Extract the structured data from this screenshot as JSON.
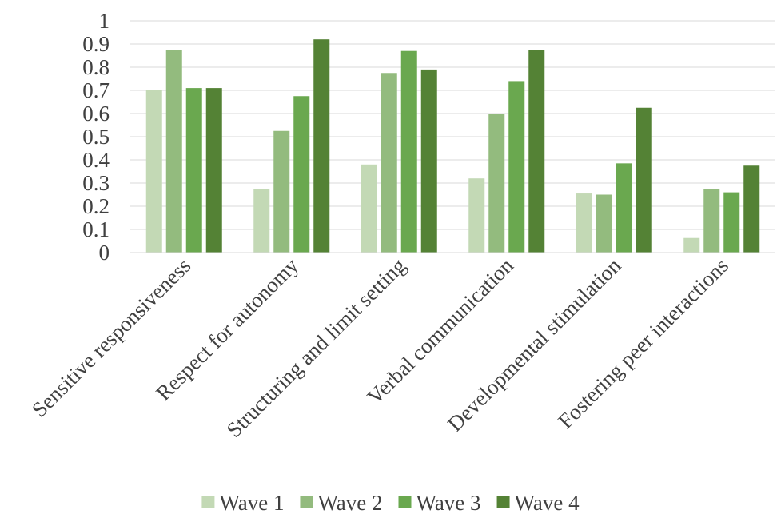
{
  "chart_data": {
    "type": "bar",
    "categories": [
      "Sensitive responsiveness",
      "Respect for autonomy",
      "Structuring and limit setting",
      "Verbal communication",
      "Developmental stimulation",
      "Fostering peer interactions"
    ],
    "series": [
      {
        "name": "Wave 1",
        "color": "#c3d9b5",
        "values": [
          0.7,
          0.275,
          0.38,
          0.32,
          0.255,
          0.063
        ]
      },
      {
        "name": "Wave 2",
        "color": "#93bb7e",
        "values": [
          0.875,
          0.525,
          0.775,
          0.6,
          0.25,
          0.275
        ]
      },
      {
        "name": "Wave 3",
        "color": "#6aa84f",
        "values": [
          0.71,
          0.675,
          0.87,
          0.74,
          0.385,
          0.26
        ]
      },
      {
        "name": "Wave 4",
        "color": "#548235",
        "values": [
          0.71,
          0.92,
          0.79,
          0.875,
          0.625,
          0.375
        ]
      }
    ],
    "yticks": [
      "0",
      "0.1",
      "0.2",
      "0.3",
      "0.4",
      "0.5",
      "0.6",
      "0.7",
      "0.8",
      "0.9",
      "1"
    ],
    "ylim": [
      0,
      1
    ],
    "grid": true,
    "legend_position": "bottom",
    "title": "",
    "xlabel": "",
    "ylabel": ""
  }
}
